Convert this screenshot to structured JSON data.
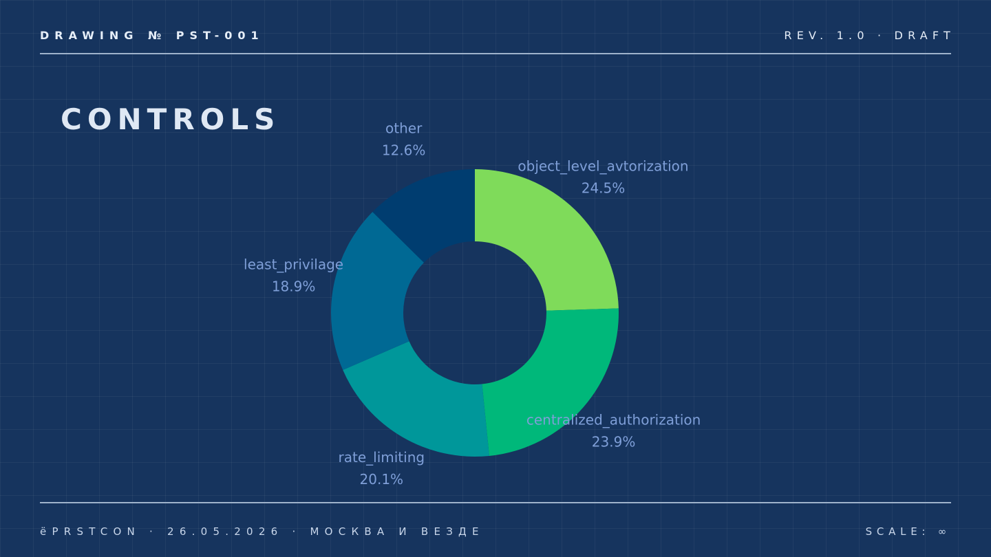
{
  "header": {
    "drawing": "DRAWING № PST-001",
    "revision": "REV. 1.0 · DRAFT"
  },
  "footer": {
    "left": "ёPRSTCON · 26.05.2026 · МОСКВА И ВЕЗДЕ",
    "right": "SCALE: ∞"
  },
  "chart_data": {
    "type": "donut",
    "title": "CONTROLS",
    "categories": [
      "object_level_avtorization",
      "centralized_authorization",
      "rate_limiting",
      "least_privilage",
      "other"
    ],
    "values": [
      24.5,
      23.9,
      20.1,
      18.9,
      12.6
    ],
    "value_labels": [
      "24.5%",
      "23.9%",
      "20.1%",
      "18.9%",
      "12.6%"
    ],
    "colors": [
      "#7fdb5a",
      "#00b87a",
      "#00979a",
      "#006994",
      "#003d70"
    ]
  }
}
